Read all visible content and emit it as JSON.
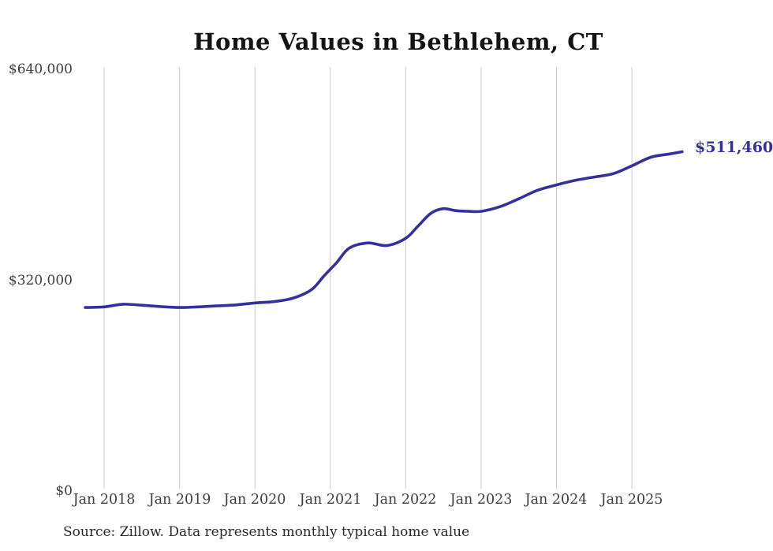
{
  "page": {
    "background_color": "#ffffff",
    "accent_color": "#34309c",
    "gridline_color": "#cccccc"
  },
  "header": {
    "title": "Home Values in Bethlehem, CT"
  },
  "footer": {
    "source_note": "Source: Zillow. Data represents monthly typical home value"
  },
  "chart_data": {
    "type": "line",
    "title": "Home Values in Bethlehem, CT",
    "xlabel": "",
    "ylabel": "",
    "ylim": [
      0,
      640000
    ],
    "grid": "vertical-only",
    "legend": "none",
    "y_ticks": [
      {
        "value": 0,
        "label": "$0"
      },
      {
        "value": 320000,
        "label": "$320,000"
      },
      {
        "value": 640000,
        "label": "$640,000"
      }
    ],
    "x_ticks": [
      {
        "value": 2018,
        "label": "Jan 2018"
      },
      {
        "value": 2019,
        "label": "Jan 2019"
      },
      {
        "value": 2020,
        "label": "Jan 2020"
      },
      {
        "value": 2021,
        "label": "Jan 2021"
      },
      {
        "value": 2022,
        "label": "Jan 2022"
      },
      {
        "value": 2023,
        "label": "Jan 2023"
      },
      {
        "value": 2024,
        "label": "Jan 2024"
      },
      {
        "value": 2025,
        "label": "Jan 2025"
      }
    ],
    "series": [
      {
        "name": "Monthly typical home value",
        "color": "#34309c",
        "points": [
          [
            "2017-10",
            275000
          ],
          [
            "2018-01",
            276000
          ],
          [
            "2018-04",
            280000
          ],
          [
            "2018-07",
            278500
          ],
          [
            "2018-10",
            276500
          ],
          [
            "2019-01",
            275000
          ],
          [
            "2019-04",
            276000
          ],
          [
            "2019-07",
            277500
          ],
          [
            "2019-10",
            279000
          ],
          [
            "2020-01",
            282000
          ],
          [
            "2020-04",
            284000
          ],
          [
            "2020-07",
            289000
          ],
          [
            "2020-10",
            302000
          ],
          [
            "2020-12",
            323000
          ],
          [
            "2021-02",
            343000
          ],
          [
            "2021-04",
            365000
          ],
          [
            "2021-07",
            373000
          ],
          [
            "2021-10",
            369000
          ],
          [
            "2022-01",
            380000
          ],
          [
            "2022-03",
            399000
          ],
          [
            "2022-05",
            418000
          ],
          [
            "2022-07",
            425000
          ],
          [
            "2022-09",
            422000
          ],
          [
            "2022-11",
            421000
          ],
          [
            "2023-01",
            421000
          ],
          [
            "2023-04",
            428000
          ],
          [
            "2023-07",
            440000
          ],
          [
            "2023-10",
            453000
          ],
          [
            "2024-01",
            461000
          ],
          [
            "2024-04",
            468000
          ],
          [
            "2024-07",
            473000
          ],
          [
            "2024-10",
            478000
          ],
          [
            "2025-01",
            490000
          ],
          [
            "2025-04",
            503000
          ],
          [
            "2025-07",
            508000
          ],
          [
            "2025-09",
            511460
          ]
        ]
      }
    ],
    "end_annotation": {
      "text": "$511,460",
      "value": 511460
    }
  }
}
